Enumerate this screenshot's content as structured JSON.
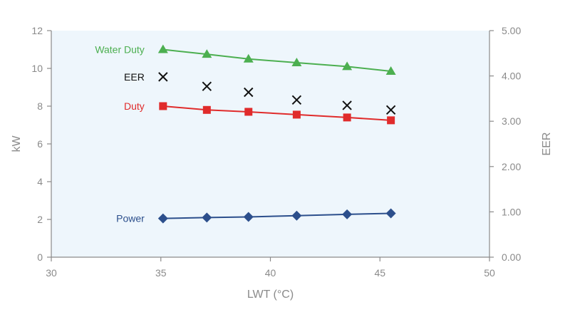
{
  "chart_data": {
    "type": "line",
    "xlabel": "LWT (°C)",
    "ylabel": "kW",
    "y2label": "EER",
    "xlim": [
      30,
      50
    ],
    "xticks": [
      30,
      35,
      40,
      45,
      50
    ],
    "ylim": [
      0,
      12
    ],
    "yticks": [
      0,
      2,
      4,
      6,
      8,
      10,
      12
    ],
    "y2lim": [
      0,
      5
    ],
    "y2ticks": [
      "0.00",
      "1.00",
      "2.00",
      "3.00",
      "4.00",
      "5.00"
    ],
    "grid": false,
    "plot_background": "#eef6fc",
    "series": [
      {
        "name": "Water Duty",
        "axis": "left",
        "color": "#4caf50",
        "marker": "triangle",
        "line": true,
        "x": [
          35.1,
          37.1,
          39.0,
          41.2,
          43.5,
          45.5
        ],
        "y": [
          11.0,
          10.75,
          10.5,
          10.3,
          10.1,
          9.85
        ]
      },
      {
        "name": "EER",
        "axis": "right",
        "color": "#111111",
        "marker": "x",
        "line": false,
        "x": [
          35.1,
          37.1,
          39.0,
          41.2,
          43.5,
          45.5
        ],
        "y": [
          3.98,
          3.77,
          3.64,
          3.47,
          3.35,
          3.25
        ]
      },
      {
        "name": "Duty",
        "axis": "left",
        "color": "#e02b2b",
        "marker": "square",
        "line": true,
        "x": [
          35.1,
          37.1,
          39.0,
          41.2,
          43.5,
          45.5
        ],
        "y": [
          8.0,
          7.8,
          7.7,
          7.55,
          7.4,
          7.25
        ]
      },
      {
        "name": "Power",
        "axis": "left",
        "color": "#2c4f8c",
        "marker": "diamond",
        "line": true,
        "x": [
          35.1,
          37.1,
          39.0,
          41.2,
          43.5,
          45.5
        ],
        "y": [
          2.05,
          2.1,
          2.13,
          2.2,
          2.27,
          2.32
        ]
      }
    ]
  }
}
